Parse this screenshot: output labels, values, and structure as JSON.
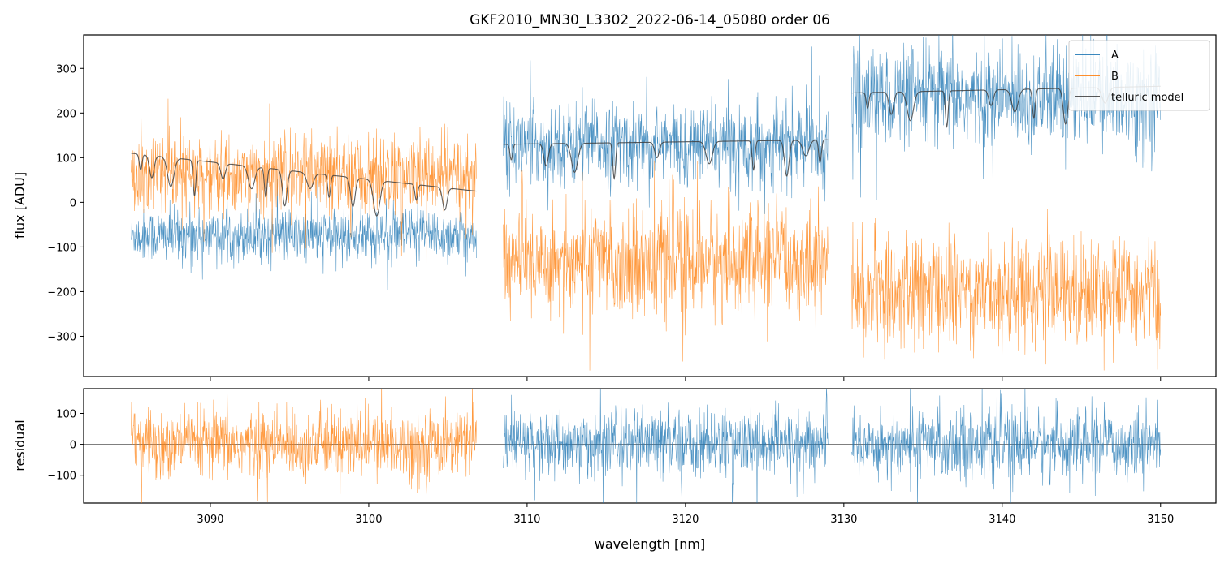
{
  "chart_data": [
    {
      "type": "line",
      "title": "GKF2010_MN30_L3302_2022-06-14_05080  order 06",
      "xlabel": "",
      "ylabel": "flux [ADU]",
      "xlim": [
        3082.0,
        3153.5
      ],
      "ylim": [
        -390,
        375
      ],
      "yticks": [
        -300,
        -200,
        -100,
        0,
        100,
        200,
        300
      ],
      "ytick_labels": [
        "−300",
        "−200",
        "−100",
        "0",
        "100",
        "200",
        "300"
      ],
      "xticks": [
        3090,
        3100,
        3110,
        3120,
        3130,
        3140,
        3150
      ],
      "grid": false,
      "legend": {
        "placement": "top-right",
        "entries": [
          "A",
          "B",
          "telluric model"
        ]
      },
      "series": [
        {
          "name": "A",
          "color": "#1f77b4",
          "segments": [
            {
              "x_range": [
                3085.0,
                3106.8
              ],
              "mean": -75,
              "noise": 30
            },
            {
              "x_range": [
                3108.5,
                3129.0
              ],
              "mean": 130,
              "noise": 45
            },
            {
              "x_range": [
                3130.5,
                3150.0
              ],
              "mean": 235,
              "noise": 55
            }
          ]
        },
        {
          "name": "B",
          "color": "#ff7f0e",
          "segments": [
            {
              "x_range": [
                3085.0,
                3106.8
              ],
              "mean": 60,
              "noise": 45
            },
            {
              "x_range": [
                3108.5,
                3129.0
              ],
              "mean": -130,
              "noise": 60
            },
            {
              "x_range": [
                3130.5,
                3150.0
              ],
              "mean": -200,
              "noise": 60
            }
          ]
        },
        {
          "name": "telluric model",
          "color": "#404040",
          "segments": [
            {
              "x_range": [
                3085.0,
                3106.8
              ],
              "continuum": [
                110,
                25
              ],
              "lines": [
                3085.6,
                3086.3,
                3087.5,
                3089.0,
                3090.8,
                3092.6,
                3093.5,
                3094.7,
                3096.3,
                3097.5,
                3099.0,
                3100.5,
                3103.0,
                3104.8
              ]
            },
            {
              "x_range": [
                3108.5,
                3129.0
              ],
              "continuum": [
                130,
                140
              ],
              "lines": [
                3109.0,
                3111.2,
                3113.0,
                3115.5,
                3118.2,
                3121.5,
                3124.3,
                3126.4,
                3127.6,
                3128.5
              ]
            },
            {
              "x_range": [
                3130.5,
                3150.0
              ],
              "continuum": [
                245,
                260
              ],
              "lines": [
                3131.5,
                3133.0,
                3134.2,
                3136.5,
                3139.3,
                3140.8,
                3142.0,
                3144.0,
                3146.5
              ]
            }
          ]
        }
      ]
    },
    {
      "type": "line",
      "title": "",
      "xlabel": "wavelength [nm]",
      "ylabel": "residual",
      "xlim": [
        3082.0,
        3153.5
      ],
      "ylim": [
        -190,
        180
      ],
      "yticks": [
        -100,
        0,
        100
      ],
      "ytick_labels": [
        "−100",
        "0",
        "100"
      ],
      "xticks": [
        3090,
        3100,
        3110,
        3120,
        3130,
        3140,
        3150
      ],
      "xtick_labels": [
        "3090",
        "3100",
        "3110",
        "3120",
        "3130",
        "3140",
        "3150"
      ],
      "zero_line": true,
      "series": [
        {
          "color": "#ff7f0e",
          "segments": [
            {
              "x_range": [
                3085.0,
                3106.8
              ],
              "mean": 0,
              "noise": 55
            }
          ]
        },
        {
          "color": "#1f77b4",
          "segments": [
            {
              "x_range": [
                3108.5,
                3129.0
              ],
              "mean": 0,
              "noise": 55
            },
            {
              "x_range": [
                3130.5,
                3150.0
              ],
              "mean": 0,
              "noise": 55
            }
          ]
        }
      ]
    }
  ]
}
